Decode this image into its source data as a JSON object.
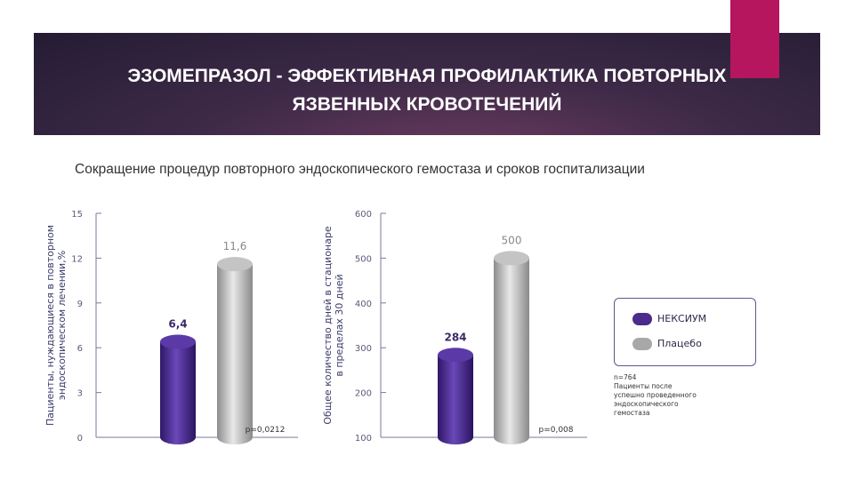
{
  "slide": {
    "title_line1": "ЭЗОМЕПРАЗОЛ - ЭФФЕКТИВНАЯ ПРОФИЛАКТИКА ПОВТОРНЫХ",
    "title_line2": "ЯЗВЕННЫХ КРОВОТЕЧЕНИЙ",
    "subtitle": "Сокращение процедур повторного эндоскопического гемостаза и сроков госпитализации",
    "accent_color": "#b5165e"
  },
  "legend": {
    "items": [
      {
        "label": "НЕКСИУМ",
        "color": "#4b2b8c"
      },
      {
        "label": "Плацебо",
        "color": "#a8a8a8"
      }
    ],
    "note": "n=764\nПациенты после\nуспешно проведенного\nэндоскопического\nгемостаза"
  },
  "chart_data": [
    {
      "type": "bar",
      "ylabel_line1": "Пациенты, нуждающиеся в повторном",
      "ylabel_line2": "эндоскопическом лечении,%",
      "ylim": [
        0,
        15
      ],
      "yticks": [
        "0",
        "3",
        "6",
        "9",
        "12",
        "15"
      ],
      "series": [
        {
          "name": "НЕКСИУМ",
          "value": 6.4,
          "label": "6,4",
          "color": "#4b2b8c"
        },
        {
          "name": "Плацебо",
          "value": 11.6,
          "label": "11,6",
          "color": "#a8a8a8"
        }
      ],
      "pvalue": "p=0,0212"
    },
    {
      "type": "bar",
      "ylabel_line1": "Общее количество дней в стационаре",
      "ylabel_line2": "в пределах 30 дней",
      "ylim": [
        100,
        600
      ],
      "yticks": [
        "100",
        "200",
        "300",
        "400",
        "500",
        "600"
      ],
      "series": [
        {
          "name": "НЕКСИУМ",
          "value": 284,
          "label": "284",
          "color": "#4b2b8c"
        },
        {
          "name": "Плацебо",
          "value": 500,
          "label": "500",
          "color": "#a8a8a8"
        }
      ],
      "pvalue": "p=0,008"
    }
  ]
}
